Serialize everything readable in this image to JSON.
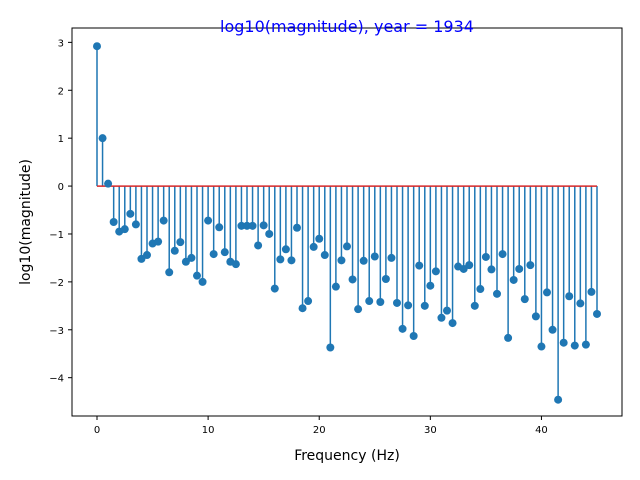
{
  "chart_data": {
    "type": "stem",
    "title": "log10(magnitude), year = 1934",
    "xlabel": "Frequency (Hz)",
    "ylabel": "log10(magnitude)",
    "xlim": [
      -2.25,
      47.25
    ],
    "ylim": [
      -4.8,
      3.3
    ],
    "xticks": [
      0,
      10,
      20,
      30,
      40
    ],
    "yticks": [
      3,
      2,
      1,
      0,
      -1,
      -2,
      -3,
      -4
    ],
    "ytick_labels": [
      "3",
      "2",
      "1",
      "0",
      "−1",
      "−2",
      "−3",
      "−4"
    ],
    "grid": false,
    "baseline": 0,
    "baseline_range": [
      0,
      45
    ],
    "colors": {
      "title": "#0000ff",
      "stem": "#1f77b4",
      "marker": "#1f77b4",
      "baseline": "#d62728"
    },
    "x": [
      0,
      0.5,
      1,
      1.5,
      2,
      2.5,
      3,
      3.5,
      4,
      4.5,
      5,
      5.5,
      6,
      6.5,
      7,
      7.5,
      8,
      8.5,
      9,
      9.5,
      10,
      10.5,
      11,
      11.5,
      12,
      12.5,
      13,
      13.5,
      14,
      14.5,
      15,
      15.5,
      16,
      16.5,
      17,
      17.5,
      18,
      18.5,
      19,
      19.5,
      20,
      20.5,
      21,
      21.5,
      22,
      22.5,
      23,
      23.5,
      24,
      24.5,
      25,
      25.5,
      26,
      26.5,
      27,
      27.5,
      28,
      28.5,
      29,
      29.5,
      30,
      30.5,
      31,
      31.5,
      32,
      32.5,
      33,
      33.5,
      34,
      34.5,
      35,
      35.5,
      36,
      36.5,
      37,
      37.5,
      38,
      38.5,
      39,
      39.5,
      40,
      40.5,
      41,
      41.5,
      42,
      42.5,
      43,
      43.5,
      44,
      44.5,
      45
    ],
    "y": [
      2.92,
      1.0,
      0.05,
      -0.75,
      -0.95,
      -0.9,
      -0.58,
      -0.8,
      -1.52,
      -1.44,
      -1.2,
      -1.16,
      -0.72,
      -1.8,
      -1.35,
      -1.17,
      -1.58,
      -1.5,
      -1.87,
      -2.0,
      -0.72,
      -1.42,
      -0.86,
      -1.38,
      -1.58,
      -1.63,
      -0.83,
      -0.83,
      -0.83,
      -1.24,
      -0.82,
      -1.0,
      -2.14,
      -1.53,
      -1.32,
      -1.55,
      -0.87,
      -2.55,
      -2.4,
      -1.27,
      -1.1,
      -1.44,
      -3.37,
      -2.1,
      -1.55,
      -1.26,
      -1.95,
      -2.57,
      -1.56,
      -2.4,
      -1.47,
      -2.42,
      -1.94,
      -1.5,
      -2.44,
      -2.98,
      -2.49,
      -3.13,
      -1.66,
      -2.5,
      -2.08,
      -1.78,
      -2.75,
      -2.6,
      -2.86,
      -1.68,
      -1.73,
      -1.65,
      -2.5,
      -2.15,
      -1.48,
      -1.74,
      -2.25,
      -1.42,
      -3.17,
      -1.96,
      -1.73,
      -2.36,
      -1.65,
      -2.72,
      -3.35,
      -2.22,
      -3.0,
      -4.46,
      -3.27,
      -2.3,
      -3.33,
      -2.45,
      -3.31,
      -2.21,
      -2.67
    ]
  }
}
